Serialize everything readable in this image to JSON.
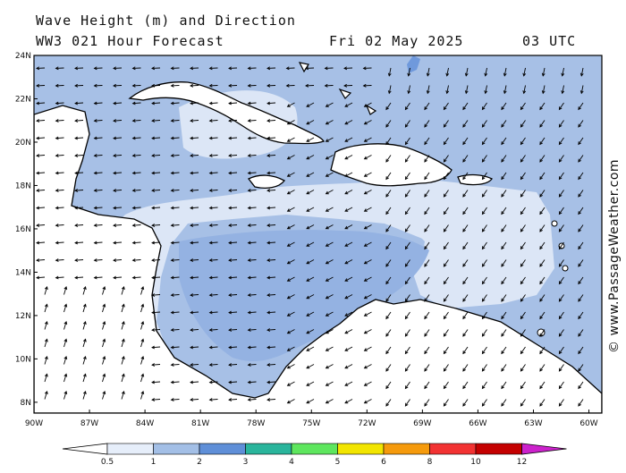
{
  "title": {
    "line1": "Wave Height (m) and Direction",
    "line2": "WW3 021 Hour Forecast",
    "date": "Fri 02 May 2025",
    "time": "03 UTC"
  },
  "credit": "© www.PassageWeather.com",
  "axes": {
    "lat_labels": [
      "24N",
      "22N",
      "20N",
      "18N",
      "16N",
      "14N",
      "12N",
      "10N",
      "8N"
    ],
    "lat_values": [
      24,
      22,
      20,
      18,
      16,
      14,
      12,
      10,
      8
    ],
    "lon_labels": [
      "90W",
      "87W",
      "84W",
      "81W",
      "78W",
      "75W",
      "72W",
      "69W",
      "66W",
      "63W",
      "60W"
    ],
    "lon_values": [
      -90,
      -87,
      -84,
      -81,
      -78,
      -75,
      -72,
      -69,
      -66,
      -63,
      -60
    ],
    "lat_range": [
      7.5,
      24
    ],
    "lon_range": [
      -90,
      -59.3
    ]
  },
  "legend": {
    "labels": [
      "0.5",
      "1",
      "2",
      "3",
      "4",
      "5",
      "6",
      "8",
      "10",
      "12"
    ],
    "colors": [
      "#e6eefa",
      "#a3bfe6",
      "#5f8fd8",
      "#2ab59c",
      "#5ee65e",
      "#f2e500",
      "#f59a0c",
      "#f23232",
      "#c40000",
      "#cc22cc"
    ],
    "unit": "m"
  },
  "colors": {
    "land": "#ffffff",
    "wave_low": "#dce6f6",
    "wave_mid": "#a7c0e6",
    "wave_high": "#6f99dc",
    "coast": "#000000",
    "arrow": "#000000"
  },
  "arrows": {
    "north_direction_deg": 180,
    "south_direction_deg": 225,
    "west_direction_deg": 180
  }
}
